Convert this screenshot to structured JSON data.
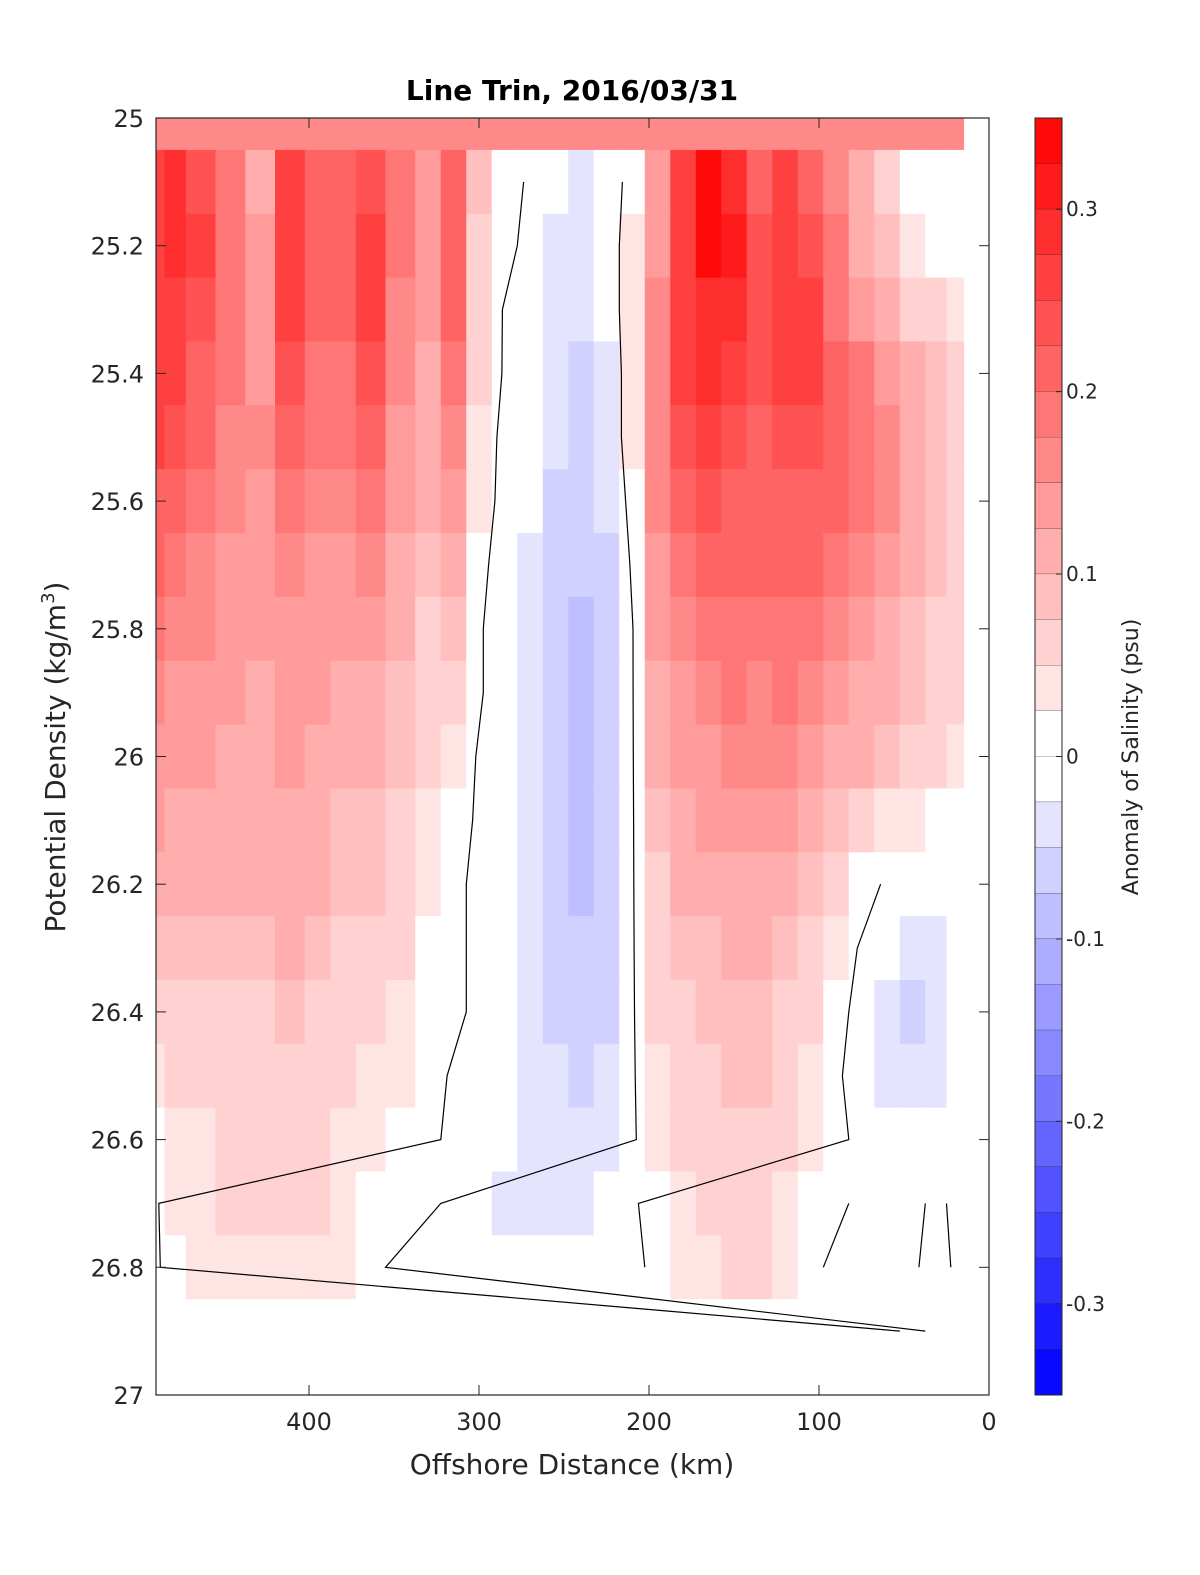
{
  "chart_data": {
    "type": "heatmap",
    "title": "Line Trin, 2016/03/31",
    "xlabel": "Offshore Distance (km)",
    "ylabel": "Potential Density (kg/m",
    "ylabel_sup": "3",
    "ylabel_end": ")",
    "xlim": [
      490,
      0
    ],
    "ylim": [
      25,
      27
    ],
    "x_reversed": true,
    "y_reversed": true,
    "x_ticks": [
      400,
      300,
      200,
      100,
      0
    ],
    "x_tick_labels": [
      "400",
      "300",
      "200",
      "100",
      "0"
    ],
    "y_ticks": [
      25,
      25.2,
      25.4,
      25.6,
      25.8,
      26,
      26.2,
      26.4,
      26.6,
      26.8,
      27
    ],
    "y_tick_labels": [
      "25",
      "25.2",
      "25.4",
      "25.6",
      "25.8",
      "26",
      "26.2",
      "26.4",
      "26.6",
      "26.8",
      "27"
    ],
    "colorbar": {
      "label": "Anomaly of Salinity (psu)",
      "range": [
        -0.35,
        0.35
      ],
      "step": 0.025,
      "ticks": [
        0.3,
        0.2,
        0.1,
        0,
        -0.1,
        -0.2,
        -0.3
      ],
      "tick_labels": [
        "0.3",
        "0.2",
        "0.1",
        "0",
        "-0.1",
        "-0.2",
        "-0.3"
      ],
      "positive_color": "#ff0000",
      "negative_color": "#0000ff",
      "neutral_color": "#ffffff"
    },
    "grid": false,
    "x_stations": [
      490,
      480,
      465,
      445,
      430,
      410,
      395,
      380,
      365,
      345,
      330,
      315,
      300,
      285,
      270,
      255,
      240,
      225,
      210,
      195,
      180,
      165,
      150,
      135,
      120,
      105,
      90,
      75,
      60,
      45,
      30,
      20
    ],
    "y_levels": [
      25,
      25.1,
      25.2,
      25.3,
      25.4,
      25.5,
      25.6,
      25.7,
      25.8,
      25.9,
      26,
      26.1,
      26.2,
      26.3,
      26.4,
      26.5,
      26.6,
      26.7,
      26.8,
      26.9
    ],
    "anomaly_grid": [
      [
        0.16,
        0.16,
        0.16,
        0.16,
        0.16,
        0.16,
        0.16,
        0.16,
        0.16,
        0.16,
        0.16,
        0.16,
        0.16,
        0.16,
        0.16,
        0.16,
        0.16,
        0.16,
        0.16,
        0.16,
        0.16,
        0.16,
        0.16,
        0.16,
        0.16,
        0.16,
        0.16,
        0.16,
        0.16,
        0.16,
        0.16,
        0.16
      ],
      [
        0.26,
        0.28,
        0.24,
        0.18,
        0.12,
        0.26,
        0.2,
        0.2,
        0.24,
        0.18,
        0.14,
        0.22,
        0.08,
        0.02,
        0.0,
        -0.02,
        -0.03,
        -0.02,
        0.02,
        0.14,
        0.26,
        0.33,
        0.3,
        0.22,
        0.27,
        0.22,
        0.16,
        0.1,
        0.06,
        0.02,
        0.01,
        0.0
      ],
      [
        0.27,
        0.28,
        0.25,
        0.19,
        0.14,
        0.26,
        0.21,
        0.2,
        0.26,
        0.18,
        0.14,
        0.22,
        0.07,
        0.01,
        0.0,
        -0.03,
        -0.04,
        -0.02,
        0.03,
        0.15,
        0.27,
        0.33,
        0.31,
        0.24,
        0.27,
        0.24,
        0.18,
        0.12,
        0.08,
        0.04,
        0.02,
        0.01
      ],
      [
        0.27,
        0.27,
        0.24,
        0.19,
        0.15,
        0.25,
        0.2,
        0.2,
        0.25,
        0.17,
        0.13,
        0.2,
        0.06,
        0.0,
        -0.01,
        -0.03,
        -0.04,
        -0.02,
        0.03,
        0.17,
        0.26,
        0.3,
        0.28,
        0.24,
        0.27,
        0.26,
        0.19,
        0.15,
        0.11,
        0.07,
        0.05,
        0.03
      ],
      [
        0.26,
        0.25,
        0.22,
        0.18,
        0.15,
        0.23,
        0.19,
        0.19,
        0.23,
        0.16,
        0.12,
        0.18,
        0.05,
        0.0,
        -0.01,
        -0.04,
        -0.05,
        -0.03,
        0.03,
        0.17,
        0.25,
        0.28,
        0.25,
        0.23,
        0.25,
        0.25,
        0.2,
        0.18,
        0.14,
        0.1,
        0.08,
        0.05
      ],
      [
        0.25,
        0.23,
        0.2,
        0.17,
        0.16,
        0.21,
        0.18,
        0.18,
        0.21,
        0.15,
        0.12,
        0.16,
        0.04,
        -0.01,
        -0.02,
        -0.04,
        -0.05,
        -0.03,
        0.03,
        0.17,
        0.23,
        0.26,
        0.24,
        0.22,
        0.23,
        0.23,
        0.2,
        0.19,
        0.16,
        0.12,
        0.09,
        0.06
      ],
      [
        0.22,
        0.21,
        0.19,
        0.16,
        0.15,
        0.19,
        0.17,
        0.17,
        0.19,
        0.14,
        0.11,
        0.13,
        0.03,
        -0.01,
        -0.02,
        -0.05,
        -0.06,
        -0.04,
        0.02,
        0.16,
        0.21,
        0.24,
        0.22,
        0.21,
        0.22,
        0.22,
        0.2,
        0.19,
        0.16,
        0.12,
        0.09,
        0.06
      ],
      [
        0.2,
        0.19,
        0.17,
        0.15,
        0.14,
        0.17,
        0.15,
        0.15,
        0.16,
        0.12,
        0.09,
        0.1,
        0.02,
        -0.02,
        -0.03,
        -0.06,
        -0.07,
        -0.05,
        0.01,
        0.15,
        0.19,
        0.21,
        0.2,
        0.2,
        0.21,
        0.2,
        0.18,
        0.16,
        0.14,
        0.11,
        0.08,
        0.05
      ],
      [
        0.18,
        0.17,
        0.16,
        0.14,
        0.13,
        0.15,
        0.14,
        0.13,
        0.14,
        0.1,
        0.07,
        0.08,
        0.01,
        -0.02,
        -0.03,
        -0.06,
        -0.08,
        -0.06,
        0.0,
        0.13,
        0.17,
        0.19,
        0.19,
        0.18,
        0.19,
        0.18,
        0.16,
        0.14,
        0.12,
        0.09,
        0.07,
        0.05
      ],
      [
        0.16,
        0.15,
        0.14,
        0.13,
        0.12,
        0.14,
        0.13,
        0.12,
        0.12,
        0.09,
        0.06,
        0.06,
        0.01,
        -0.02,
        -0.03,
        -0.07,
        -0.08,
        -0.06,
        0.0,
        0.12,
        0.15,
        0.17,
        0.18,
        0.17,
        0.18,
        0.16,
        0.14,
        0.12,
        0.1,
        0.08,
        0.06,
        0.05
      ],
      [
        0.15,
        0.14,
        0.13,
        0.12,
        0.12,
        0.13,
        0.12,
        0.11,
        0.11,
        0.08,
        0.05,
        0.04,
        0.0,
        -0.02,
        -0.03,
        -0.07,
        -0.09,
        -0.06,
        0.0,
        0.1,
        0.13,
        0.15,
        0.16,
        0.16,
        0.16,
        0.14,
        0.12,
        0.1,
        0.08,
        0.07,
        0.05,
        0.04
      ],
      [
        0.13,
        0.12,
        0.12,
        0.11,
        0.11,
        0.12,
        0.11,
        0.09,
        0.09,
        0.07,
        0.04,
        0.02,
        0.0,
        -0.02,
        -0.03,
        -0.07,
        -0.09,
        -0.06,
        0.0,
        0.08,
        0.11,
        0.13,
        0.14,
        0.14,
        0.13,
        0.12,
        0.09,
        0.07,
        0.04,
        0.03,
        0.02,
        0.01
      ],
      [
        0.11,
        0.11,
        0.11,
        0.1,
        0.1,
        0.11,
        0.1,
        0.08,
        0.08,
        0.06,
        0.03,
        0.01,
        0.0,
        -0.02,
        -0.03,
        -0.06,
        -0.08,
        -0.06,
        0.0,
        0.07,
        0.1,
        0.11,
        0.12,
        0.12,
        0.11,
        0.09,
        0.05,
        0.02,
        0.0,
        -0.02,
        -0.01,
        0.0
      ],
      [
        0.09,
        0.09,
        0.09,
        0.09,
        0.09,
        0.1,
        0.09,
        0.07,
        0.06,
        0.05,
        0.02,
        0.01,
        0.0,
        -0.02,
        -0.03,
        -0.05,
        -0.07,
        -0.05,
        0.0,
        0.06,
        0.08,
        0.09,
        0.1,
        0.1,
        0.09,
        0.07,
        0.03,
        0.0,
        -0.02,
        -0.04,
        -0.03,
        -0.01
      ],
      [
        0.07,
        0.07,
        0.07,
        0.07,
        0.07,
        0.08,
        0.07,
        0.06,
        0.05,
        0.04,
        0.02,
        0.01,
        0.0,
        -0.02,
        -0.03,
        -0.05,
        -0.06,
        -0.05,
        0.0,
        0.05,
        0.07,
        0.08,
        0.09,
        0.09,
        0.07,
        0.05,
        0.02,
        -0.01,
        -0.03,
        -0.05,
        -0.04,
        -0.02
      ],
      [
        0.04,
        0.05,
        0.05,
        0.06,
        0.06,
        0.06,
        0.06,
        0.05,
        0.04,
        0.03,
        0.02,
        0.0,
        -0.01,
        -0.02,
        -0.03,
        -0.04,
        -0.05,
        -0.04,
        0.0,
        0.04,
        0.06,
        0.07,
        0.08,
        0.08,
        0.06,
        0.04,
        0.01,
        -0.01,
        -0.03,
        -0.04,
        -0.03,
        -0.01
      ],
      [
        0.02,
        0.03,
        0.04,
        0.05,
        0.05,
        0.05,
        0.05,
        0.04,
        0.03,
        0.02,
        0.01,
        0.0,
        -0.01,
        -0.02,
        -0.03,
        -0.04,
        -0.04,
        -0.03,
        0.0,
        0.03,
        0.05,
        0.06,
        0.07,
        0.07,
        0.05,
        0.03,
        0.01,
        0.0,
        -0.02,
        -0.02,
        -0.01,
        0.0
      ],
      [
        0.0,
        0.03,
        0.04,
        0.05,
        0.05,
        0.05,
        0.05,
        0.04,
        0.02,
        0.01,
        0.01,
        0.0,
        -0.01,
        -0.03,
        -0.03,
        -0.03,
        -0.03,
        -0.02,
        0.0,
        0.02,
        0.04,
        0.05,
        0.06,
        0.06,
        0.04,
        0.02,
        0.01,
        0.0,
        0.0,
        0.0,
        0.01,
        0.0
      ],
      [
        0.0,
        0.02,
        0.04,
        0.04,
        0.04,
        0.04,
        0.04,
        0.03,
        0.01,
        0.0,
        0.0,
        0.0,
        -0.01,
        -0.02,
        -0.02,
        -0.02,
        -0.02,
        -0.01,
        0.0,
        0.01,
        0.03,
        0.04,
        0.05,
        0.05,
        0.03,
        0.01,
        0.0,
        0.0,
        0.0,
        0.0,
        0.02,
        0.0
      ],
      [
        0.0,
        0.0,
        0.0,
        0.0,
        0.0,
        0.0,
        0.0,
        0.0,
        0.0,
        0.0,
        0.0,
        0.0,
        -0.01,
        -0.02,
        -0.02,
        -0.02,
        -0.02,
        -0.01,
        0.0,
        0.0,
        0.0,
        0.0,
        0.0,
        0.0,
        0.0,
        0.0,
        0.0,
        0.0,
        0.0,
        0.01,
        0.0,
        0.0
      ]
    ]
  }
}
